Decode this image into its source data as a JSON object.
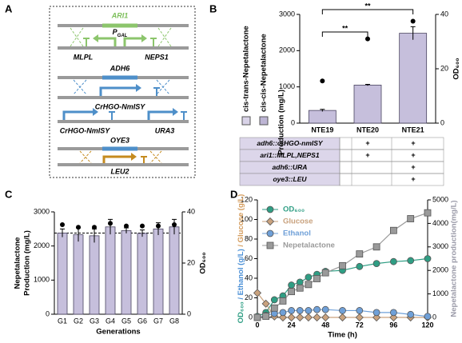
{
  "panels": [
    "A",
    "B",
    "C",
    "D"
  ],
  "diagram": {
    "genes": [
      "ARI1",
      "ADH6",
      "OYE3"
    ],
    "promoter": {
      "main": "P",
      "sub": "GAL"
    },
    "labels": [
      "MLPL",
      "NEPS1",
      "CrHGO-NmISY",
      "CrHGO-NmISY",
      "URA3",
      "LEU2"
    ]
  },
  "table": {
    "rows": [
      [
        "adh6::crHGO-nmISY",
        null,
        "+",
        "+"
      ],
      [
        "ari1::MLPL,NEPS1",
        null,
        "+",
        "+"
      ],
      [
        "adh6::URA",
        null,
        null,
        "+"
      ],
      [
        "oye3::LEU",
        null,
        null,
        "+"
      ]
    ]
  },
  "chart_data": [
    {
      "type": "bar",
      "categories": [
        "NTE19",
        "NTE20",
        "NTE21"
      ],
      "ylim": [
        0,
        3000
      ],
      "yticks": [
        0,
        1000,
        2000,
        3000
      ],
      "y2lim": [
        0,
        40
      ],
      "y2ticks": [
        0,
        20,
        40
      ],
      "ylabel": [
        "Production (mg/L)"
      ],
      "y2label": "OD₆₀₀",
      "legend": [
        {
          "name": "cis-trans-Nepetalactone",
          "color": "#d9d3e8"
        },
        {
          "name": "cis-cis-Nepetalactone",
          "color": "#bdb5d4"
        }
      ],
      "series": [
        {
          "values": [
            350,
            1050,
            2480
          ],
          "errors": [
            30,
            20,
            180
          ],
          "color": "#c6bfdc"
        },
        {
          "values": [
            15.5,
            31,
            37.5
          ],
          "axis": "y2",
          "color": "#000000"
        }
      ],
      "annotations": [
        "**",
        "**"
      ]
    },
    {
      "type": "bar",
      "categories": [
        "G1",
        "G2",
        "G3",
        "G4",
        "G5",
        "G6",
        "G7",
        "G8"
      ],
      "ylim": [
        0,
        3000
      ],
      "yticks": [
        0,
        1000,
        2000,
        3000
      ],
      "y2lim": [
        0,
        40
      ],
      "y2ticks": [
        0,
        20,
        40
      ],
      "ylabel": [
        "Nepetalactone",
        "Production (mg/L)"
      ],
      "y2label": "OD₆₀₀",
      "xlabel": "Generations",
      "reference_line": 2380,
      "series": [
        {
          "values": [
            2380,
            2330,
            2300,
            2560,
            2450,
            2370,
            2500,
            2560
          ],
          "errors": [
            120,
            200,
            200,
            220,
            80,
            100,
            180,
            220
          ],
          "color": "#c6bfdc"
        },
        {
          "values": [
            35,
            34,
            34,
            35.5,
            34.5,
            34.5,
            34.5,
            35
          ],
          "axis": "y2",
          "color": "#000000"
        }
      ]
    },
    {
      "type": "line",
      "x": [
        0,
        6,
        12,
        18,
        24,
        30,
        36,
        42,
        48,
        60,
        72,
        84,
        96,
        108,
        120
      ],
      "xlim": [
        0,
        120
      ],
      "xticks": [
        0,
        24,
        48,
        72,
        96,
        120
      ],
      "ylim": [
        0,
        120
      ],
      "yticks": [
        0,
        20,
        40,
        60,
        80,
        100,
        120
      ],
      "y2lim": [
        0,
        5000
      ],
      "y2ticks": [
        0,
        1000,
        2000,
        3000,
        4000,
        5000
      ],
      "xlabel": "Time (h)",
      "ylabel_parts": [
        {
          "text": "OD₆₀₀",
          "color": "#2f9e84"
        },
        {
          "text": " / Ethanol (g/L)",
          "color": "#4a8fd6"
        },
        {
          "text": " / Glucose (g/L)",
          "color": "#d39a5a"
        }
      ],
      "y2label": "Nepetalactone production(mg/L)",
      "series": [
        {
          "name": "OD₆₀₀",
          "color": "#2f9e84",
          "marker": "circle",
          "values": [
            1,
            5,
            18,
            22,
            33,
            36,
            41,
            44,
            47,
            48,
            52,
            55,
            57,
            58,
            60
          ]
        },
        {
          "name": "Glucose",
          "color": "#c9a27e",
          "marker": "diamond",
          "values": [
            25,
            14,
            1,
            0,
            0,
            0,
            0,
            0,
            0,
            0,
            0,
            0,
            0,
            0,
            0
          ]
        },
        {
          "name": "Ethanol",
          "color": "#6fa0d8",
          "marker": "circle",
          "values": [
            0,
            2,
            4,
            5,
            7,
            7,
            7,
            8,
            8,
            7,
            7,
            5,
            5,
            3,
            1
          ]
        },
        {
          "name": "Nepetalactone",
          "color": "#9a9a9a",
          "marker": "square",
          "axis": "y2",
          "values": [
            0,
            50,
            400,
            700,
            1100,
            1250,
            1400,
            1650,
            1900,
            2200,
            2700,
            3000,
            3700,
            4200,
            4450
          ]
        }
      ]
    }
  ]
}
